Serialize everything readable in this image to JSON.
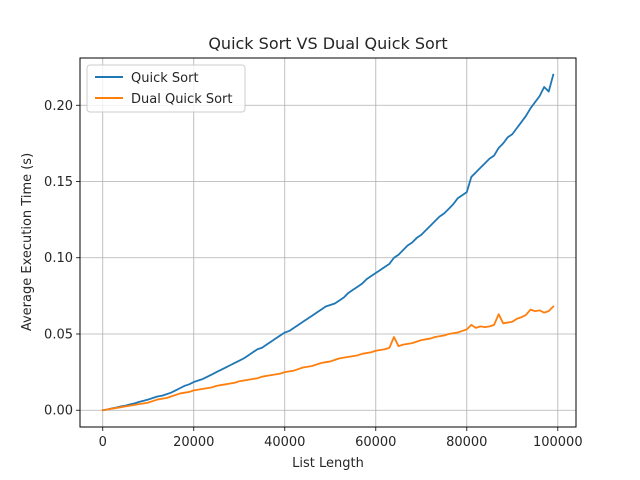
{
  "chart_data": {
    "type": "line",
    "title": "Quick Sort VS Dual Quick Sort",
    "xlabel": "List Length",
    "ylabel": "Average Execution Time (s)",
    "xlim": [
      -5000,
      104000
    ],
    "ylim": [
      -0.011,
      0.231
    ],
    "xticks": [
      0,
      20000,
      40000,
      60000,
      80000,
      100000
    ],
    "xtick_labels": [
      "0",
      "20000",
      "40000",
      "60000",
      "80000",
      "100000"
    ],
    "yticks": [
      0.0,
      0.05,
      0.1,
      0.15,
      0.2
    ],
    "ytick_labels": [
      "0.00",
      "0.05",
      "0.10",
      "0.15",
      "0.20"
    ],
    "grid": true,
    "legend_position": "top-left",
    "x": [
      0,
      1000,
      2000,
      3000,
      4000,
      5000,
      6000,
      7000,
      8000,
      9000,
      10000,
      11000,
      12000,
      13000,
      14000,
      15000,
      16000,
      17000,
      18000,
      19000,
      20000,
      21000,
      22000,
      23000,
      24000,
      25000,
      26000,
      27000,
      28000,
      29000,
      30000,
      31000,
      32000,
      33000,
      34000,
      35000,
      36000,
      37000,
      38000,
      39000,
      40000,
      41000,
      42000,
      43000,
      44000,
      45000,
      46000,
      47000,
      48000,
      49000,
      50000,
      51000,
      52000,
      53000,
      54000,
      55000,
      56000,
      57000,
      58000,
      59000,
      60000,
      61000,
      62000,
      63000,
      64000,
      65000,
      66000,
      67000,
      68000,
      69000,
      70000,
      71000,
      72000,
      73000,
      74000,
      75000,
      76000,
      77000,
      78000,
      79000,
      80000,
      81000,
      82000,
      83000,
      84000,
      85000,
      86000,
      87000,
      88000,
      89000,
      90000,
      91000,
      92000,
      93000,
      94000,
      95000,
      96000,
      97000,
      98000,
      99000
    ],
    "series": [
      {
        "name": "Quick Sort",
        "color": "#1f77b4",
        "values": [
          0.0,
          0.0005,
          0.0012,
          0.0018,
          0.0025,
          0.003,
          0.0038,
          0.0045,
          0.0055,
          0.0062,
          0.007,
          0.008,
          0.009,
          0.0095,
          0.0105,
          0.0115,
          0.013,
          0.0145,
          0.016,
          0.017,
          0.0185,
          0.0195,
          0.0205,
          0.022,
          0.0235,
          0.025,
          0.0265,
          0.028,
          0.0295,
          0.031,
          0.0325,
          0.034,
          0.036,
          0.038,
          0.04,
          0.041,
          0.043,
          0.045,
          0.047,
          0.049,
          0.051,
          0.052,
          0.054,
          0.056,
          0.058,
          0.06,
          0.062,
          0.064,
          0.066,
          0.068,
          0.069,
          0.07,
          0.072,
          0.074,
          0.077,
          0.079,
          0.081,
          0.083,
          0.086,
          0.088,
          0.09,
          0.092,
          0.094,
          0.096,
          0.1,
          0.102,
          0.105,
          0.108,
          0.11,
          0.113,
          0.115,
          0.118,
          0.121,
          0.124,
          0.127,
          0.129,
          0.132,
          0.135,
          0.139,
          0.141,
          0.143,
          0.153,
          0.156,
          0.159,
          0.162,
          0.165,
          0.167,
          0.172,
          0.175,
          0.179,
          0.181,
          0.185,
          0.189,
          0.193,
          0.198,
          0.202,
          0.206,
          0.212,
          0.209,
          0.22
        ]
      },
      {
        "name": "Dual Quick Sort",
        "color": "#ff7f0e",
        "values": [
          0.0,
          0.0005,
          0.001,
          0.0015,
          0.002,
          0.0025,
          0.003,
          0.0035,
          0.004,
          0.0045,
          0.005,
          0.006,
          0.007,
          0.0075,
          0.008,
          0.009,
          0.01,
          0.011,
          0.0115,
          0.012,
          0.013,
          0.0135,
          0.014,
          0.0145,
          0.015,
          0.016,
          0.0165,
          0.017,
          0.0175,
          0.018,
          0.019,
          0.0195,
          0.02,
          0.0205,
          0.021,
          0.022,
          0.0225,
          0.023,
          0.0235,
          0.024,
          0.025,
          0.0255,
          0.026,
          0.027,
          0.028,
          0.0285,
          0.029,
          0.03,
          0.031,
          0.0315,
          0.032,
          0.033,
          0.034,
          0.0345,
          0.035,
          0.0355,
          0.036,
          0.037,
          0.0375,
          0.038,
          0.039,
          0.0395,
          0.04,
          0.041,
          0.048,
          0.042,
          0.043,
          0.0435,
          0.044,
          0.045,
          0.046,
          0.0465,
          0.047,
          0.048,
          0.0485,
          0.049,
          0.05,
          0.0505,
          0.051,
          0.052,
          0.053,
          0.056,
          0.054,
          0.055,
          0.0545,
          0.055,
          0.056,
          0.063,
          0.057,
          0.0575,
          0.058,
          0.06,
          0.061,
          0.0625,
          0.066,
          0.065,
          0.0655,
          0.064,
          0.065,
          0.068
        ]
      }
    ]
  }
}
